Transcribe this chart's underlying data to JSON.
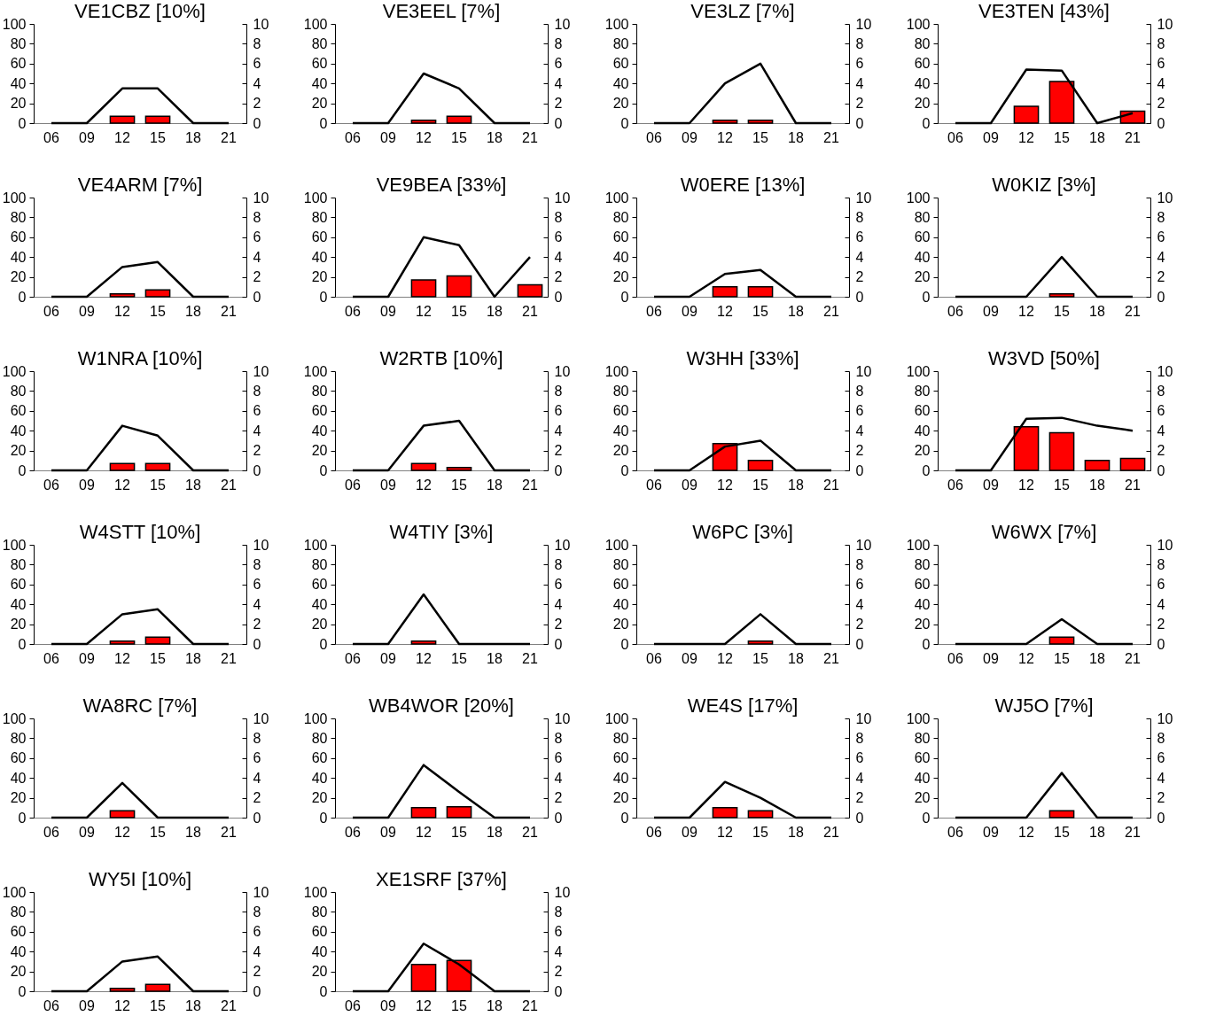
{
  "chart_data": [
    {
      "type": "bar",
      "title": "VE1CBZ [10%]",
      "categories": [
        "06",
        "09",
        "12",
        "15",
        "18",
        "21"
      ],
      "series": [
        {
          "color": "#ff0000",
          "values": [
            0,
            0,
            7,
            7,
            0,
            0
          ]
        },
        {
          "type": "line",
          "axis": "y2",
          "color": "#000000",
          "values": [
            0,
            0,
            3.5,
            3.5,
            0,
            0
          ]
        }
      ],
      "ylim": [
        0,
        100
      ],
      "yticks": [
        0,
        20,
        40,
        60,
        80,
        100
      ],
      "y2lim": [
        0,
        10
      ],
      "y2ticks": [
        0,
        2,
        4,
        6,
        8,
        10
      ]
    },
    {
      "type": "bar",
      "title": "VE3EEL [7%]",
      "categories": [
        "06",
        "09",
        "12",
        "15",
        "18",
        "21"
      ],
      "series": [
        {
          "color": "#ff0000",
          "values": [
            0,
            0,
            3,
            7,
            0,
            0
          ]
        },
        {
          "type": "line",
          "axis": "y2",
          "color": "#000000",
          "values": [
            0,
            0,
            5,
            3.5,
            0,
            0
          ]
        }
      ],
      "ylim": [
        0,
        100
      ],
      "yticks": [
        0,
        20,
        40,
        60,
        80,
        100
      ],
      "y2lim": [
        0,
        10
      ],
      "y2ticks": [
        0,
        2,
        4,
        6,
        8,
        10
      ]
    },
    {
      "type": "bar",
      "title": "VE3LZ [7%]",
      "categories": [
        "06",
        "09",
        "12",
        "15",
        "18",
        "21"
      ],
      "series": [
        {
          "color": "#ff0000",
          "values": [
            0,
            0,
            3,
            3,
            0,
            0
          ]
        },
        {
          "type": "line",
          "axis": "y2",
          "color": "#000000",
          "values": [
            0,
            0,
            4,
            6,
            0,
            0
          ]
        }
      ],
      "ylim": [
        0,
        100
      ],
      "yticks": [
        0,
        20,
        40,
        60,
        80,
        100
      ],
      "y2lim": [
        0,
        10
      ],
      "y2ticks": [
        0,
        2,
        4,
        6,
        8,
        10
      ]
    },
    {
      "type": "bar",
      "title": "VE3TEN [43%]",
      "categories": [
        "06",
        "09",
        "12",
        "15",
        "18",
        "21"
      ],
      "series": [
        {
          "color": "#ff0000",
          "values": [
            0,
            0,
            17,
            42,
            0,
            12
          ]
        },
        {
          "type": "line",
          "axis": "y2",
          "color": "#000000",
          "values": [
            0,
            0,
            5.4,
            5.3,
            0,
            1
          ]
        }
      ],
      "ylim": [
        0,
        100
      ],
      "yticks": [
        0,
        20,
        40,
        60,
        80,
        100
      ],
      "y2lim": [
        0,
        10
      ],
      "y2ticks": [
        0,
        2,
        4,
        6,
        8,
        10
      ]
    },
    {
      "type": "bar",
      "title": "VE4ARM [7%]",
      "categories": [
        "06",
        "09",
        "12",
        "15",
        "18",
        "21"
      ],
      "series": [
        {
          "color": "#ff0000",
          "values": [
            0,
            0,
            3,
            7,
            0,
            0
          ]
        },
        {
          "type": "line",
          "axis": "y2",
          "color": "#000000",
          "values": [
            0,
            0,
            3,
            3.5,
            0,
            0
          ]
        }
      ],
      "ylim": [
        0,
        100
      ],
      "yticks": [
        0,
        20,
        40,
        60,
        80,
        100
      ],
      "y2lim": [
        0,
        10
      ],
      "y2ticks": [
        0,
        2,
        4,
        6,
        8,
        10
      ]
    },
    {
      "type": "bar",
      "title": "VE9BEA [33%]",
      "categories": [
        "06",
        "09",
        "12",
        "15",
        "18",
        "21"
      ],
      "series": [
        {
          "color": "#ff0000",
          "values": [
            0,
            0,
            17,
            21,
            0,
            12
          ]
        },
        {
          "type": "line",
          "axis": "y2",
          "color": "#000000",
          "values": [
            0,
            0,
            6,
            5.2,
            0,
            4
          ]
        }
      ],
      "ylim": [
        0,
        100
      ],
      "yticks": [
        0,
        20,
        40,
        60,
        80,
        100
      ],
      "y2lim": [
        0,
        10
      ],
      "y2ticks": [
        0,
        2,
        4,
        6,
        8,
        10
      ]
    },
    {
      "type": "bar",
      "title": "W0ERE [13%]",
      "categories": [
        "06",
        "09",
        "12",
        "15",
        "18",
        "21"
      ],
      "series": [
        {
          "color": "#ff0000",
          "values": [
            0,
            0,
            10,
            10,
            0,
            0
          ]
        },
        {
          "type": "line",
          "axis": "y2",
          "color": "#000000",
          "values": [
            0,
            0,
            2.3,
            2.7,
            0,
            0
          ]
        }
      ],
      "ylim": [
        0,
        100
      ],
      "yticks": [
        0,
        20,
        40,
        60,
        80,
        100
      ],
      "y2lim": [
        0,
        10
      ],
      "y2ticks": [
        0,
        2,
        4,
        6,
        8,
        10
      ]
    },
    {
      "type": "bar",
      "title": "W0KIZ [3%]",
      "categories": [
        "06",
        "09",
        "12",
        "15",
        "18",
        "21"
      ],
      "series": [
        {
          "color": "#ff0000",
          "values": [
            0,
            0,
            0,
            3,
            0,
            0
          ]
        },
        {
          "type": "line",
          "axis": "y2",
          "color": "#000000",
          "values": [
            0,
            0,
            0,
            4,
            0,
            0
          ]
        }
      ],
      "ylim": [
        0,
        100
      ],
      "yticks": [
        0,
        20,
        40,
        60,
        80,
        100
      ],
      "y2lim": [
        0,
        10
      ],
      "y2ticks": [
        0,
        2,
        4,
        6,
        8,
        10
      ]
    },
    {
      "type": "bar",
      "title": "W1NRA [10%]",
      "categories": [
        "06",
        "09",
        "12",
        "15",
        "18",
        "21"
      ],
      "series": [
        {
          "color": "#ff0000",
          "values": [
            0,
            0,
            7,
            7,
            0,
            0
          ]
        },
        {
          "type": "line",
          "axis": "y2",
          "color": "#000000",
          "values": [
            0,
            0,
            4.5,
            3.5,
            0,
            0
          ]
        }
      ],
      "ylim": [
        0,
        100
      ],
      "yticks": [
        0,
        20,
        40,
        60,
        80,
        100
      ],
      "y2lim": [
        0,
        10
      ],
      "y2ticks": [
        0,
        2,
        4,
        6,
        8,
        10
      ]
    },
    {
      "type": "bar",
      "title": "W2RTB [10%]",
      "categories": [
        "06",
        "09",
        "12",
        "15",
        "18",
        "21"
      ],
      "series": [
        {
          "color": "#ff0000",
          "values": [
            0,
            0,
            7,
            3,
            0,
            0
          ]
        },
        {
          "type": "line",
          "axis": "y2",
          "color": "#000000",
          "values": [
            0,
            0,
            4.5,
            5,
            0,
            0
          ]
        }
      ],
      "ylim": [
        0,
        100
      ],
      "yticks": [
        0,
        20,
        40,
        60,
        80,
        100
      ],
      "y2lim": [
        0,
        10
      ],
      "y2ticks": [
        0,
        2,
        4,
        6,
        8,
        10
      ]
    },
    {
      "type": "bar",
      "title": "W3HH [33%]",
      "categories": [
        "06",
        "09",
        "12",
        "15",
        "18",
        "21"
      ],
      "series": [
        {
          "color": "#ff0000",
          "values": [
            0,
            0,
            27,
            10,
            0,
            0
          ]
        },
        {
          "type": "line",
          "axis": "y2",
          "color": "#000000",
          "values": [
            0,
            0,
            2.4,
            3,
            0,
            0
          ]
        }
      ],
      "ylim": [
        0,
        100
      ],
      "yticks": [
        0,
        20,
        40,
        60,
        80,
        100
      ],
      "y2lim": [
        0,
        10
      ],
      "y2ticks": [
        0,
        2,
        4,
        6,
        8,
        10
      ]
    },
    {
      "type": "bar",
      "title": "W3VD [50%]",
      "categories": [
        "06",
        "09",
        "12",
        "15",
        "18",
        "21"
      ],
      "series": [
        {
          "color": "#ff0000",
          "values": [
            0,
            0,
            44,
            38,
            10,
            12
          ]
        },
        {
          "type": "line",
          "axis": "y2",
          "color": "#000000",
          "values": [
            0,
            0,
            5.2,
            5.3,
            4.5,
            4
          ]
        }
      ],
      "ylim": [
        0,
        100
      ],
      "yticks": [
        0,
        20,
        40,
        60,
        80,
        100
      ],
      "y2lim": [
        0,
        10
      ],
      "y2ticks": [
        0,
        2,
        4,
        6,
        8,
        10
      ]
    },
    {
      "type": "bar",
      "title": "W4STT [10%]",
      "categories": [
        "06",
        "09",
        "12",
        "15",
        "18",
        "21"
      ],
      "series": [
        {
          "color": "#ff0000",
          "values": [
            0,
            0,
            3,
            7,
            0,
            0
          ]
        },
        {
          "type": "line",
          "axis": "y2",
          "color": "#000000",
          "values": [
            0,
            0,
            3,
            3.5,
            0,
            0
          ]
        }
      ],
      "ylim": [
        0,
        100
      ],
      "yticks": [
        0,
        20,
        40,
        60,
        80,
        100
      ],
      "y2lim": [
        0,
        10
      ],
      "y2ticks": [
        0,
        2,
        4,
        6,
        8,
        10
      ]
    },
    {
      "type": "bar",
      "title": "W4TIY [3%]",
      "categories": [
        "06",
        "09",
        "12",
        "15",
        "18",
        "21"
      ],
      "series": [
        {
          "color": "#ff0000",
          "values": [
            0,
            0,
            3,
            0,
            0,
            0
          ]
        },
        {
          "type": "line",
          "axis": "y2",
          "color": "#000000",
          "values": [
            0,
            0,
            5,
            0,
            0,
            0
          ]
        }
      ],
      "ylim": [
        0,
        100
      ],
      "yticks": [
        0,
        20,
        40,
        60,
        80,
        100
      ],
      "y2lim": [
        0,
        10
      ],
      "y2ticks": [
        0,
        2,
        4,
        6,
        8,
        10
      ]
    },
    {
      "type": "bar",
      "title": "W6PC [3%]",
      "categories": [
        "06",
        "09",
        "12",
        "15",
        "18",
        "21"
      ],
      "series": [
        {
          "color": "#ff0000",
          "values": [
            0,
            0,
            0,
            3,
            0,
            0
          ]
        },
        {
          "type": "line",
          "axis": "y2",
          "color": "#000000",
          "values": [
            0,
            0,
            0,
            3,
            0,
            0
          ]
        }
      ],
      "ylim": [
        0,
        100
      ],
      "yticks": [
        0,
        20,
        40,
        60,
        80,
        100
      ],
      "y2lim": [
        0,
        10
      ],
      "y2ticks": [
        0,
        2,
        4,
        6,
        8,
        10
      ]
    },
    {
      "type": "bar",
      "title": "W6WX [7%]",
      "categories": [
        "06",
        "09",
        "12",
        "15",
        "18",
        "21"
      ],
      "series": [
        {
          "color": "#ff0000",
          "values": [
            0,
            0,
            0,
            7,
            0,
            0
          ]
        },
        {
          "type": "line",
          "axis": "y2",
          "color": "#000000",
          "values": [
            0,
            0,
            0,
            2.5,
            0,
            0
          ]
        }
      ],
      "ylim": [
        0,
        100
      ],
      "yticks": [
        0,
        20,
        40,
        60,
        80,
        100
      ],
      "y2lim": [
        0,
        10
      ],
      "y2ticks": [
        0,
        2,
        4,
        6,
        8,
        10
      ]
    },
    {
      "type": "bar",
      "title": "WA8RC [7%]",
      "categories": [
        "06",
        "09",
        "12",
        "15",
        "18",
        "21"
      ],
      "series": [
        {
          "color": "#ff0000",
          "values": [
            0,
            0,
            7,
            0,
            0,
            0
          ]
        },
        {
          "type": "line",
          "axis": "y2",
          "color": "#000000",
          "values": [
            0,
            0,
            3.5,
            0,
            0,
            0
          ]
        }
      ],
      "ylim": [
        0,
        100
      ],
      "yticks": [
        0,
        20,
        40,
        60,
        80,
        100
      ],
      "y2lim": [
        0,
        10
      ],
      "y2ticks": [
        0,
        2,
        4,
        6,
        8,
        10
      ]
    },
    {
      "type": "bar",
      "title": "WB4WOR [20%]",
      "categories": [
        "06",
        "09",
        "12",
        "15",
        "18",
        "21"
      ],
      "series": [
        {
          "color": "#ff0000",
          "values": [
            0,
            0,
            10,
            11,
            0,
            0
          ]
        },
        {
          "type": "line",
          "axis": "y2",
          "color": "#000000",
          "values": [
            0,
            0,
            5.3,
            2.6,
            0,
            0
          ]
        }
      ],
      "ylim": [
        0,
        100
      ],
      "yticks": [
        0,
        20,
        40,
        60,
        80,
        100
      ],
      "y2lim": [
        0,
        10
      ],
      "y2ticks": [
        0,
        2,
        4,
        6,
        8,
        10
      ]
    },
    {
      "type": "bar",
      "title": "WE4S [17%]",
      "categories": [
        "06",
        "09",
        "12",
        "15",
        "18",
        "21"
      ],
      "series": [
        {
          "color": "#ff0000",
          "values": [
            0,
            0,
            10,
            7,
            0,
            0
          ]
        },
        {
          "type": "line",
          "axis": "y2",
          "color": "#000000",
          "values": [
            0,
            0,
            3.6,
            2,
            0,
            0
          ]
        }
      ],
      "ylim": [
        0,
        100
      ],
      "yticks": [
        0,
        20,
        40,
        60,
        80,
        100
      ],
      "y2lim": [
        0,
        10
      ],
      "y2ticks": [
        0,
        2,
        4,
        6,
        8,
        10
      ]
    },
    {
      "type": "bar",
      "title": "WJ5O [7%]",
      "categories": [
        "06",
        "09",
        "12",
        "15",
        "18",
        "21"
      ],
      "series": [
        {
          "color": "#ff0000",
          "values": [
            0,
            0,
            0,
            7,
            0,
            0
          ]
        },
        {
          "type": "line",
          "axis": "y2",
          "color": "#000000",
          "values": [
            0,
            0,
            0,
            4.5,
            0,
            0
          ]
        }
      ],
      "ylim": [
        0,
        100
      ],
      "yticks": [
        0,
        20,
        40,
        60,
        80,
        100
      ],
      "y2lim": [
        0,
        10
      ],
      "y2ticks": [
        0,
        2,
        4,
        6,
        8,
        10
      ]
    },
    {
      "type": "bar",
      "title": "WY5I [10%]",
      "categories": [
        "06",
        "09",
        "12",
        "15",
        "18",
        "21"
      ],
      "series": [
        {
          "color": "#ff0000",
          "values": [
            0,
            0,
            3,
            7,
            0,
            0
          ]
        },
        {
          "type": "line",
          "axis": "y2",
          "color": "#000000",
          "values": [
            0,
            0,
            3,
            3.5,
            0,
            0
          ]
        }
      ],
      "ylim": [
        0,
        100
      ],
      "yticks": [
        0,
        20,
        40,
        60,
        80,
        100
      ],
      "y2lim": [
        0,
        10
      ],
      "y2ticks": [
        0,
        2,
        4,
        6,
        8,
        10
      ]
    },
    {
      "type": "bar",
      "title": "XE1SRF [37%]",
      "categories": [
        "06",
        "09",
        "12",
        "15",
        "18",
        "21"
      ],
      "series": [
        {
          "color": "#ff0000",
          "values": [
            0,
            0,
            27,
            31,
            0,
            0
          ]
        },
        {
          "type": "line",
          "axis": "y2",
          "color": "#000000",
          "values": [
            0,
            0,
            4.8,
            2.7,
            0,
            0
          ]
        }
      ],
      "ylim": [
        0,
        100
      ],
      "yticks": [
        0,
        20,
        40,
        60,
        80,
        100
      ],
      "y2lim": [
        0,
        10
      ],
      "y2ticks": [
        0,
        2,
        4,
        6,
        8,
        10
      ]
    }
  ]
}
